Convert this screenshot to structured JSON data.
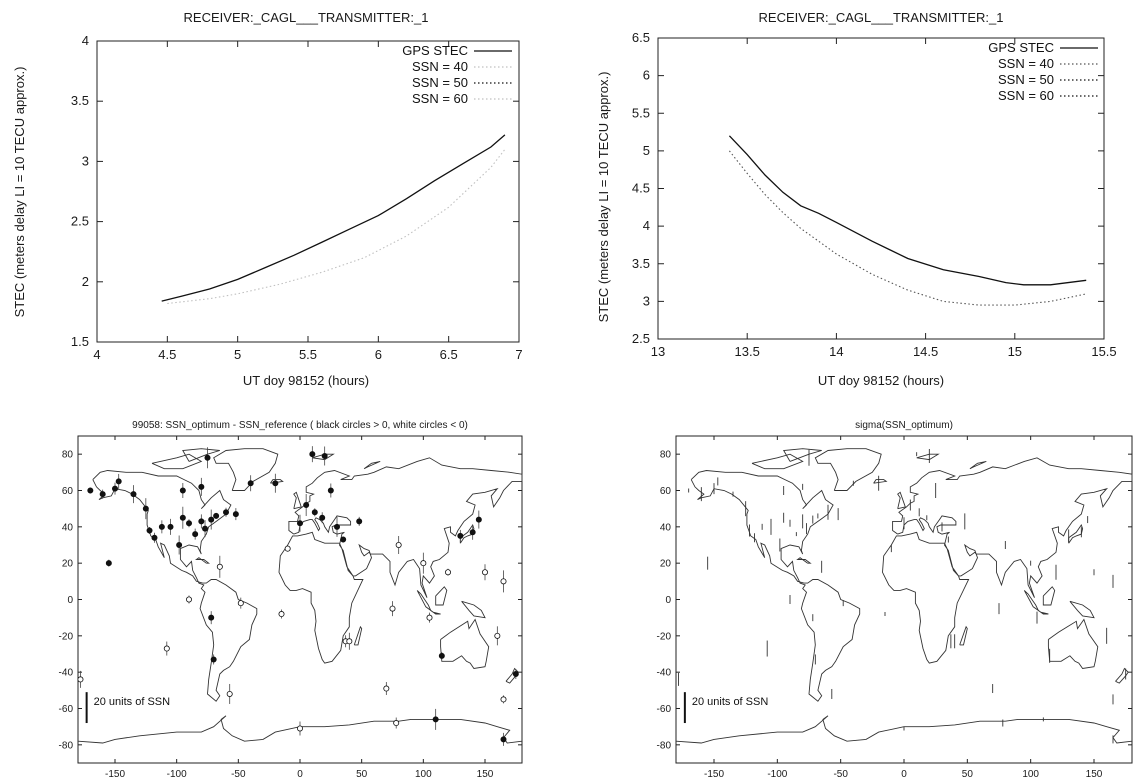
{
  "chart_data": [
    {
      "type": "line",
      "title": "RECEIVER:_CAGL___TRANSMITTER:_1",
      "xlabel": "UT doy 98152 (hours)",
      "ylabel": "STEC (meters delay LI = 10 TECU approx.)",
      "xlim": [
        4,
        7
      ],
      "ylim": [
        1.5,
        4
      ],
      "xticks": [
        "4",
        "4.5",
        "5",
        "5.5",
        "6",
        "6.5",
        "7"
      ],
      "yticks": [
        "1.5",
        "2",
        "2.5",
        "3",
        "3.5",
        "4"
      ],
      "legend_position": "top-right",
      "series": [
        {
          "name": "GPS STEC",
          "color": "#111111",
          "style": "solid",
          "x": [
            4.46,
            4.6,
            4.8,
            5.0,
            5.2,
            5.4,
            5.6,
            5.8,
            6.0,
            6.2,
            6.4,
            6.6,
            6.8,
            6.9
          ],
          "y": [
            1.84,
            1.88,
            1.94,
            2.02,
            2.12,
            2.22,
            2.33,
            2.44,
            2.55,
            2.69,
            2.84,
            2.98,
            3.12,
            3.22
          ]
        },
        {
          "name": "SSN = 40",
          "color": "#c0c0c0",
          "style": "dotted",
          "x": [
            4.5,
            4.8,
            5.0,
            5.3,
            5.6,
            5.9,
            6.2,
            6.5,
            6.8,
            6.9
          ],
          "y": [
            1.82,
            1.86,
            1.9,
            1.98,
            2.08,
            2.2,
            2.38,
            2.62,
            2.95,
            3.1
          ]
        },
        {
          "name": "SSN = 50",
          "color": "#111111",
          "style": "dotted",
          "x": [],
          "y": []
        },
        {
          "name": "SSN = 60",
          "color": "#c0c0c0",
          "style": "dotted",
          "x": [],
          "y": []
        }
      ]
    },
    {
      "type": "line",
      "title": "RECEIVER:_CAGL___TRANSMITTER:_1",
      "xlabel": "UT doy 98152 (hours)",
      "ylabel": "STEC (meters delay LI = 10 TECU approx.)",
      "xlim": [
        13,
        15.5
      ],
      "ylim": [
        2.5,
        6.5
      ],
      "xticks": [
        "13",
        "13.5",
        "14",
        "14.5",
        "15",
        "15.5"
      ],
      "yticks": [
        "2.5",
        "3",
        "3.5",
        "4",
        "4.5",
        "5",
        "5.5",
        "6",
        "6.5"
      ],
      "legend_position": "top-right",
      "series": [
        {
          "name": "GPS STEC",
          "color": "#111111",
          "style": "solid",
          "x": [
            13.4,
            13.5,
            13.6,
            13.7,
            13.8,
            13.9,
            14.0,
            14.2,
            14.4,
            14.6,
            14.8,
            14.95,
            15.05,
            15.2,
            15.4
          ],
          "y": [
            5.2,
            4.95,
            4.68,
            4.45,
            4.27,
            4.17,
            4.05,
            3.8,
            3.57,
            3.42,
            3.33,
            3.25,
            3.22,
            3.22,
            3.28
          ]
        },
        {
          "name": "SSN = 40",
          "color": "#555555",
          "style": "dotted",
          "x": [
            13.4,
            13.5,
            13.6,
            13.7,
            13.8,
            13.9,
            14.0,
            14.2,
            14.4,
            14.6,
            14.8,
            15.0,
            15.2,
            15.4
          ],
          "y": [
            5.0,
            4.7,
            4.42,
            4.18,
            3.97,
            3.8,
            3.63,
            3.36,
            3.15,
            3.0,
            2.95,
            2.95,
            3.0,
            3.1
          ]
        },
        {
          "name": "SSN = 50",
          "color": "#111111",
          "style": "dotted",
          "x": [],
          "y": []
        },
        {
          "name": "SSN = 60",
          "color": "#111111",
          "style": "dotted",
          "x": [],
          "y": []
        }
      ]
    },
    {
      "type": "scatter",
      "title": "99058: SSN_optimum - SSN_reference ( black circles > 0, white circles < 0)",
      "xlim": [
        -180,
        180
      ],
      "ylim": [
        -90,
        90
      ],
      "xticks": [
        "-150",
        "-100",
        "-50",
        "0",
        "50",
        "100",
        "150"
      ],
      "yticks": [
        "80",
        "60",
        "40",
        "20",
        "0",
        "-20",
        "-40",
        "-60",
        "-80"
      ],
      "scale_label": "20 units of SSN",
      "points": [
        {
          "lon": -170,
          "lat": 60,
          "v": 1
        },
        {
          "lon": -160,
          "lat": 58,
          "v": 1
        },
        {
          "lon": -150,
          "lat": 61,
          "v": 1
        },
        {
          "lon": -147,
          "lat": 65,
          "v": 1
        },
        {
          "lon": -135,
          "lat": 58,
          "v": 1
        },
        {
          "lon": -125,
          "lat": 50,
          "v": 1
        },
        {
          "lon": -122,
          "lat": 38,
          "v": 1
        },
        {
          "lon": -118,
          "lat": 34,
          "v": 1
        },
        {
          "lon": -112,
          "lat": 40,
          "v": 1
        },
        {
          "lon": -105,
          "lat": 40,
          "v": 1
        },
        {
          "lon": -98,
          "lat": 30,
          "v": 1
        },
        {
          "lon": -95,
          "lat": 45,
          "v": 1
        },
        {
          "lon": -90,
          "lat": 42,
          "v": 1
        },
        {
          "lon": -85,
          "lat": 36,
          "v": 1
        },
        {
          "lon": -80,
          "lat": 43,
          "v": 1
        },
        {
          "lon": -77,
          "lat": 39,
          "v": 1
        },
        {
          "lon": -72,
          "lat": 44,
          "v": 1
        },
        {
          "lon": -68,
          "lat": 46,
          "v": 1
        },
        {
          "lon": -60,
          "lat": 48,
          "v": 1
        },
        {
          "lon": -52,
          "lat": 47,
          "v": 1
        },
        {
          "lon": -95,
          "lat": 60,
          "v": 1
        },
        {
          "lon": -80,
          "lat": 62,
          "v": 1
        },
        {
          "lon": -75,
          "lat": 78,
          "v": 1
        },
        {
          "lon": -155,
          "lat": 20,
          "v": 1
        },
        {
          "lon": -70,
          "lat": -33,
          "v": 1
        },
        {
          "lon": -72,
          "lat": -10,
          "v": 1
        },
        {
          "lon": 10,
          "lat": 80,
          "v": 1
        },
        {
          "lon": 20,
          "lat": 79,
          "v": 1
        },
        {
          "lon": 5,
          "lat": 52,
          "v": 1
        },
        {
          "lon": 12,
          "lat": 48,
          "v": 1
        },
        {
          "lon": 18,
          "lat": 45,
          "v": 1
        },
        {
          "lon": 25,
          "lat": 60,
          "v": 1
        },
        {
          "lon": 0,
          "lat": 42,
          "v": 1
        },
        {
          "lon": 30,
          "lat": 40,
          "v": 1
        },
        {
          "lon": 35,
          "lat": 33,
          "v": 1
        },
        {
          "lon": 48,
          "lat": 43,
          "v": 1
        },
        {
          "lon": 130,
          "lat": 35,
          "v": 1
        },
        {
          "lon": 140,
          "lat": 37,
          "v": 1
        },
        {
          "lon": 145,
          "lat": 44,
          "v": 1
        },
        {
          "lon": 110,
          "lat": -66,
          "v": 1
        },
        {
          "lon": 115,
          "lat": -31,
          "v": 1
        },
        {
          "lon": 175,
          "lat": -41,
          "v": 1
        },
        {
          "lon": 165,
          "lat": -77,
          "v": 1
        },
        {
          "lon": -40,
          "lat": 64,
          "v": 1
        },
        {
          "lon": -20,
          "lat": 64,
          "v": 1
        },
        {
          "lon": -65,
          "lat": 18,
          "v": -1
        },
        {
          "lon": -90,
          "lat": 0,
          "v": -1
        },
        {
          "lon": -48,
          "lat": -2,
          "v": -1
        },
        {
          "lon": -108,
          "lat": -27,
          "v": -1
        },
        {
          "lon": -178,
          "lat": -44,
          "v": -1
        },
        {
          "lon": -57,
          "lat": -52,
          "v": -1
        },
        {
          "lon": -10,
          "lat": 28,
          "v": -1
        },
        {
          "lon": -15,
          "lat": -8,
          "v": -1
        },
        {
          "lon": 37,
          "lat": -23,
          "v": -1
        },
        {
          "lon": 75,
          "lat": -5,
          "v": -1
        },
        {
          "lon": 80,
          "lat": 30,
          "v": -1
        },
        {
          "lon": 100,
          "lat": 20,
          "v": -1
        },
        {
          "lon": 120,
          "lat": 15,
          "v": -1
        },
        {
          "lon": 105,
          "lat": -10,
          "v": -1
        },
        {
          "lon": 70,
          "lat": -49,
          "v": -1
        },
        {
          "lon": 150,
          "lat": 15,
          "v": -1
        },
        {
          "lon": 160,
          "lat": -20,
          "v": -1
        },
        {
          "lon": 165,
          "lat": 10,
          "v": -1
        },
        {
          "lon": 165,
          "lat": -55,
          "v": -1
        },
        {
          "lon": 78,
          "lat": -68,
          "v": -1
        },
        {
          "lon": 0,
          "lat": -71,
          "v": -1
        },
        {
          "lon": 40,
          "lat": -23,
          "v": -1
        }
      ]
    },
    {
      "type": "scatter",
      "title": "sigma(SSN_optimum)",
      "xlim": [
        -180,
        180
      ],
      "ylim": [
        -90,
        90
      ],
      "xticks": [
        "-150",
        "-100",
        "-50",
        "0",
        "50",
        "100",
        "150"
      ],
      "yticks": [
        "80",
        "60",
        "40",
        "20",
        "0",
        "-20",
        "-40",
        "-60",
        "-80"
      ],
      "scale_label": "20 units of SSN"
    }
  ]
}
